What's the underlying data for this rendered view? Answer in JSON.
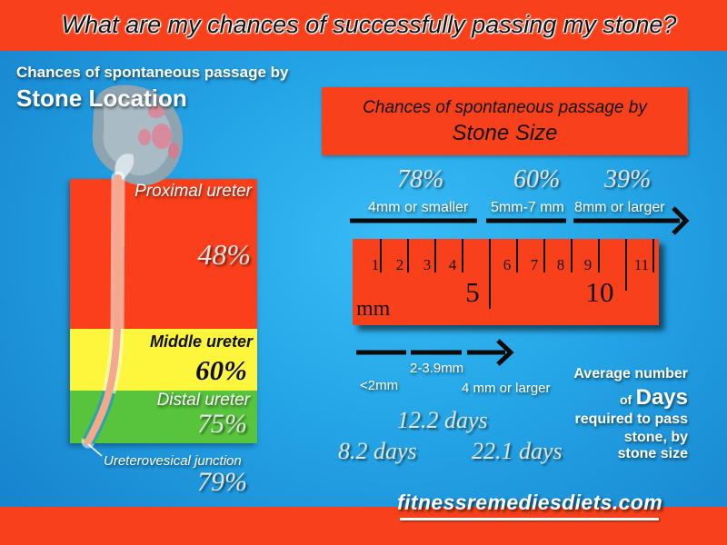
{
  "header": {
    "title": "What are my chances of successfully passing my stone?"
  },
  "location_panel": {
    "heading_line1": "Chances of spontaneous passage by",
    "heading_line2": "Stone Location",
    "segments": [
      {
        "label": "Proximal ureter",
        "chance": "48%",
        "color": "#fb3f1b"
      },
      {
        "label": "Middle ureter",
        "chance": "60%",
        "color": "#fdf63c"
      },
      {
        "label": "Distal ureter",
        "chance": "75%",
        "color": "#57c43c"
      },
      {
        "label": "Ureterovesical junction",
        "chance": "79%"
      }
    ]
  },
  "size_panel": {
    "heading_line1": "Chances of spontaneous passage by",
    "heading_line2": "Stone Size",
    "ranges": [
      {
        "chance": "78%",
        "label": "4mm or smaller"
      },
      {
        "chance": "60%",
        "label": "5mm-7 mm"
      },
      {
        "chance": "39%",
        "label": "8mm or larger"
      }
    ],
    "ruler": {
      "unit": "mm",
      "marks": [
        "1",
        "2",
        "3",
        "4",
        "5",
        "6",
        "7",
        "8",
        "9",
        "10",
        "11"
      ]
    }
  },
  "days_panel": {
    "ranges": [
      {
        "label": "<2mm",
        "days": "8.2 days"
      },
      {
        "label": "2-3.9mm",
        "days": "12.2 days"
      },
      {
        "label": "4 mm or larger",
        "days": "22.1 days"
      }
    ],
    "caption": {
      "line1": "Average number",
      "of": "of",
      "emphasis": "Days",
      "line3": "required to pass",
      "line4": "stone, by",
      "line5": "stone size"
    }
  },
  "footer": {
    "site": "fitnessremediesdiets.com"
  },
  "colors": {
    "banner_red": "#f8401b"
  }
}
